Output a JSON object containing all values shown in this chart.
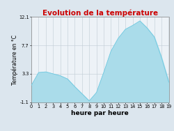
{
  "title": "Evolution de la température",
  "xlabel": "heure par heure",
  "ylabel": "Température en °C",
  "hours": [
    0,
    1,
    2,
    3,
    4,
    5,
    6,
    7,
    8,
    9,
    10,
    11,
    12,
    13,
    14,
    15,
    16,
    17,
    18,
    19
  ],
  "values": [
    1.5,
    3.5,
    3.6,
    3.3,
    3.0,
    2.5,
    1.3,
    0.2,
    -0.9,
    0.4,
    3.5,
    6.8,
    8.8,
    10.2,
    10.8,
    11.5,
    10.4,
    9.0,
    5.8,
    2.0
  ],
  "ylim": [
    -1.1,
    12.1
  ],
  "xlim": [
    0,
    19
  ],
  "yticks": [
    -1.1,
    3.3,
    7.7,
    12.1
  ],
  "xticks": [
    0,
    1,
    2,
    3,
    4,
    5,
    6,
    7,
    8,
    9,
    10,
    11,
    12,
    13,
    14,
    15,
    16,
    17,
    18,
    19
  ],
  "xtick_labels": [
    "0",
    "1",
    "2",
    "3",
    "4",
    "5",
    "6",
    "7",
    "8",
    "9",
    "10",
    "11",
    "12",
    "13",
    "14",
    "15",
    "16",
    "17",
    "18",
    "19"
  ],
  "fill_color": "#aadcea",
  "line_color": "#6ec8e0",
  "title_color": "#cc0000",
  "bg_color": "#dce6ee",
  "plot_bg_color": "#edf2f7",
  "grid_color": "#c0ccd4",
  "title_fontsize": 7.5,
  "label_fontsize": 5.5,
  "tick_fontsize": 4.8,
  "xlabel_fontsize": 6.5
}
